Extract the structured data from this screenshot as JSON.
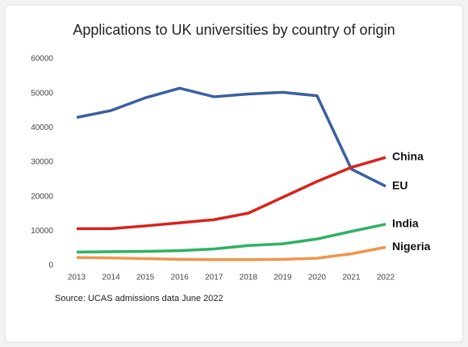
{
  "chart_data": {
    "type": "line",
    "title": "Applications to UK universities by country of origin",
    "categories": [
      "2013",
      "2014",
      "2015",
      "2016",
      "2017",
      "2018",
      "2019",
      "2020",
      "2021",
      "2022"
    ],
    "series": [
      {
        "name": "EU",
        "color": "#3b5fa0",
        "values": [
          43000,
          45000,
          48700,
          51500,
          49000,
          49800,
          50300,
          49300,
          28000,
          23000
        ]
      },
      {
        "name": "China",
        "color": "#d8231c",
        "values": [
          10700,
          10700,
          11500,
          12400,
          13300,
          15200,
          19800,
          24400,
          28500,
          31400
        ]
      },
      {
        "name": "India",
        "color": "#2fb262",
        "values": [
          3900,
          4000,
          4100,
          4300,
          4800,
          5800,
          6300,
          7700,
          9900,
          12000
        ]
      },
      {
        "name": "Nigeria",
        "color": "#f0954a",
        "values": [
          2300,
          2200,
          2000,
          1800,
          1700,
          1700,
          1800,
          2100,
          3400,
          5300
        ]
      }
    ],
    "ylim": [
      0,
      60000
    ],
    "yticks": [
      0,
      10000,
      20000,
      30000,
      40000,
      50000,
      60000
    ],
    "grid": false,
    "source": "Source: UCAS admissions data June 2022"
  }
}
